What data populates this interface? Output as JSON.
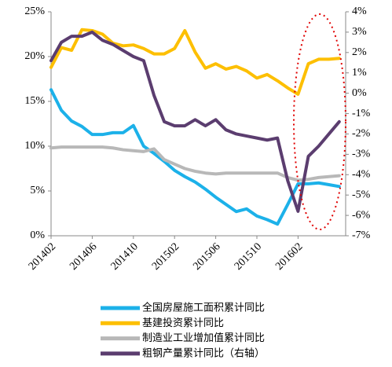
{
  "chart_data": {
    "type": "line",
    "categories": [
      "201402",
      null,
      null,
      null,
      "201406",
      null,
      null,
      null,
      "201410",
      null,
      null,
      null,
      "201502",
      null,
      null,
      null,
      "201506",
      null,
      null,
      null,
      "201510",
      null,
      null,
      null,
      "201602",
      null,
      null,
      null,
      null
    ],
    "ylim": [
      0,
      25
    ],
    "yticks": [
      {
        "value": 0,
        "label": "0%"
      },
      {
        "value": 5,
        "label": "5%"
      },
      {
        "value": 10,
        "label": "10%"
      },
      {
        "value": 15,
        "label": "15%"
      },
      {
        "value": 20,
        "label": "20%"
      },
      {
        "value": 25,
        "label": "25%"
      }
    ],
    "y2lim": [
      -7,
      4
    ],
    "y2ticks": [
      {
        "value": 4,
        "label": "4%"
      },
      {
        "value": 3,
        "label": "3%"
      },
      {
        "value": 2,
        "label": "2%"
      },
      {
        "value": 1,
        "label": "1%"
      },
      {
        "value": 0,
        "label": "0%"
      },
      {
        "value": -1,
        "label": "-1%"
      },
      {
        "value": -2,
        "label": "-2%"
      },
      {
        "value": -3,
        "label": "-3%"
      },
      {
        "value": -4,
        "label": "-4%"
      },
      {
        "value": -5,
        "label": "-5%"
      },
      {
        "value": -6,
        "label": "-6%"
      },
      {
        "value": -7,
        "label": "-7%"
      }
    ],
    "grid": false,
    "legend": "bottom",
    "series": [
      {
        "name": "全国房屋施工面积累计同比",
        "color": "#1cb1e9",
        "values": [
          16.3,
          14.0,
          12.8,
          12.2,
          11.3,
          11.3,
          11.5,
          11.5,
          12.3,
          10.0,
          9.2,
          8.3,
          7.3,
          6.6,
          6.0,
          5.2,
          4.3,
          3.5,
          2.7,
          3.0,
          2.2,
          1.8,
          1.3,
          3.5,
          5.8,
          5.8,
          5.9,
          5.7,
          5.5
        ]
      },
      {
        "name": "基建投资累计同比",
        "color": "#fdbf00",
        "values": [
          18.8,
          21.0,
          20.7,
          23.0,
          22.9,
          22.5,
          21.5,
          21.2,
          21.3,
          20.9,
          20.3,
          20.3,
          20.9,
          22.9,
          20.5,
          18.7,
          19.2,
          18.6,
          18.9,
          18.4,
          17.6,
          18.0,
          17.3,
          16.5,
          15.8,
          19.2,
          19.7,
          19.7,
          19.8
        ]
      },
      {
        "name": "制造业工业增加值累计同比",
        "color": "#b8b8b8",
        "values": [
          9.8,
          9.9,
          9.9,
          9.9,
          9.9,
          9.9,
          9.8,
          9.6,
          9.5,
          9.4,
          9.7,
          8.5,
          8.0,
          7.5,
          7.2,
          7.0,
          6.9,
          7.0,
          7.0,
          7.0,
          7.0,
          7.0,
          7.0,
          6.5,
          6.2,
          6.3,
          6.5,
          6.6,
          6.7
        ]
      },
      {
        "name": "粗钢产量累计同比（右轴）",
        "color": "#5b3d6f",
        "axis": "y2",
        "values": [
          1.6,
          2.5,
          2.8,
          2.8,
          3.0,
          2.6,
          2.4,
          2.1,
          1.8,
          1.6,
          -0.1,
          -1.4,
          -1.6,
          -1.6,
          -1.3,
          -1.6,
          -1.3,
          -1.8,
          -2.0,
          -2.1,
          -2.2,
          -2.3,
          -2.2,
          -4.3,
          -5.8,
          -3.1,
          -2.6,
          -2.0,
          -1.4
        ]
      }
    ]
  }
}
